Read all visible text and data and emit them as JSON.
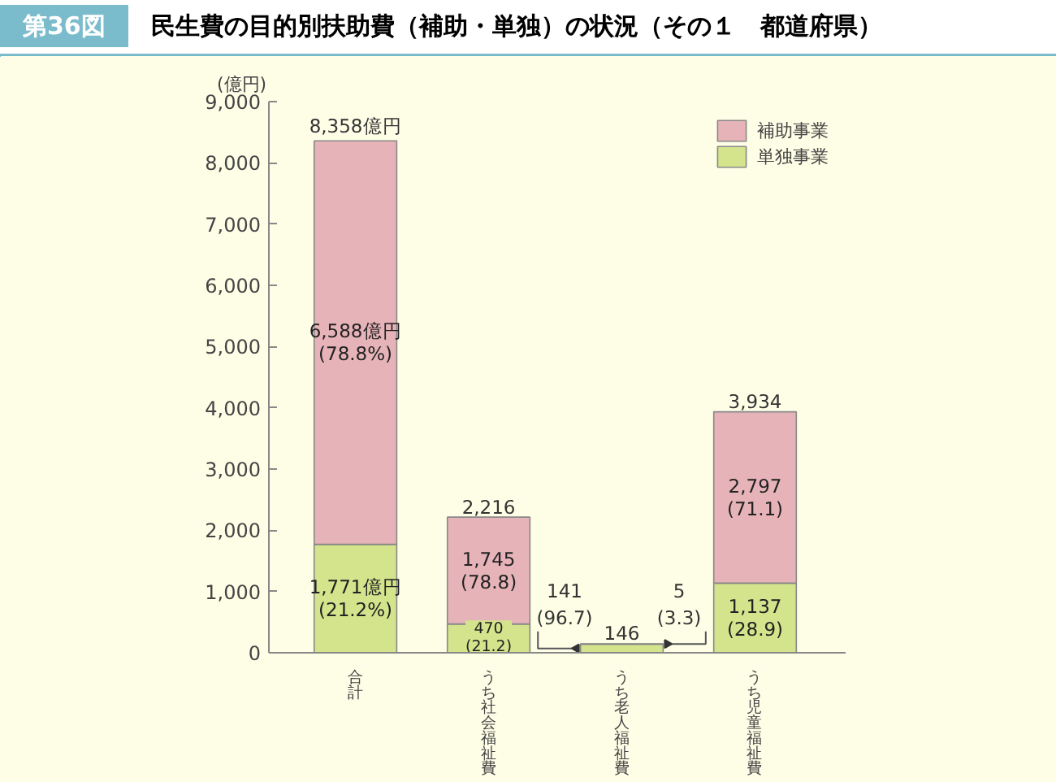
{
  "chart_data": {
    "type": "bar",
    "title": "民生費の目的別扶助費（補助・単独）の状況（その１　都道府県）",
    "annotations": [
      "第36図"
    ],
    "ylabel": "(億円)",
    "categories": [
      "合計",
      "うち社会福祉費",
      "うち老人福祉費",
      "うち児童福祉費"
    ],
    "stacked": true,
    "series": [
      {
        "name": "単独事業",
        "color": "#d3e48c",
        "values": [
          1771,
          470,
          141,
          1137
        ],
        "value_labels": [
          "1,771億円\n(21.2%)",
          "470\n(21.2)",
          "141\n(96.7)",
          "1,137\n(28.9)"
        ]
      },
      {
        "name": "補助事業",
        "color": "#e6b3b8",
        "values": [
          6588,
          1745,
          5,
          2797
        ],
        "value_labels": [
          "6,588億円\n(78.8%)",
          "1,745\n(78.8)",
          "5\n(3.3)",
          "2,797\n(71.1)"
        ]
      }
    ],
    "totals": [
      "8,358億円",
      "2,216",
      "146",
      "3,934"
    ],
    "ylim": [
      0,
      9000
    ],
    "yticks": [
      {
        "value": 0,
        "label": "0"
      },
      {
        "value": 1000,
        "label": "1,000"
      },
      {
        "value": 2000,
        "label": "2,000"
      },
      {
        "value": 3000,
        "label": "3,000"
      },
      {
        "value": 4000,
        "label": "4,000"
      },
      {
        "value": 5000,
        "label": "5,000"
      },
      {
        "value": 6000,
        "label": "6,000"
      },
      {
        "value": 7000,
        "label": "7,000"
      },
      {
        "value": 8000,
        "label": "8,000"
      },
      {
        "value": 9000,
        "label": "9,000"
      }
    ],
    "grid": false,
    "legend": "top right"
  }
}
